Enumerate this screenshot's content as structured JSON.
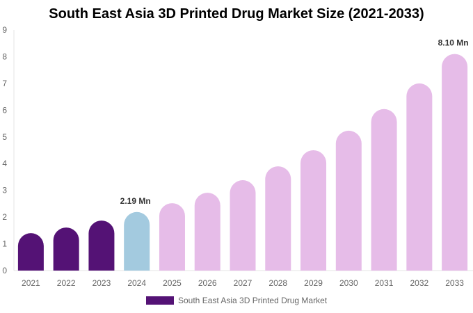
{
  "chart_data": {
    "type": "bar",
    "title": "South East Asia 3D Printed Drug Market Size (2021-2033)",
    "categories": [
      "2021",
      "2022",
      "2023",
      "2024",
      "2025",
      "2026",
      "2027",
      "2028",
      "2029",
      "2030",
      "2031",
      "2032",
      "2033"
    ],
    "series": [
      {
        "name": "South East Asia 3D Printed Drug Market",
        "values": [
          1.4,
          1.61,
          1.87,
          2.19,
          2.52,
          2.91,
          3.38,
          3.9,
          4.5,
          5.23,
          6.04,
          7.0,
          8.1
        ]
      }
    ],
    "bar_colors": [
      "#541275",
      "#541275",
      "#541275",
      "#a3cadf",
      "#e6bce8",
      "#e6bce8",
      "#e6bce8",
      "#e6bce8",
      "#e6bce8",
      "#e6bce8",
      "#e6bce8",
      "#e6bce8",
      "#e6bce8"
    ],
    "data_labels": {
      "2024": "2.19 Mn",
      "2033": "8.10 Mn"
    },
    "ylim": [
      0,
      9
    ],
    "yticks": [
      0,
      1,
      2,
      3,
      4,
      5,
      6,
      7,
      8,
      9
    ],
    "xlabel": "",
    "ylabel": "",
    "grid": false,
    "legend_position": "bottom",
    "legend_color": "#541275"
  }
}
